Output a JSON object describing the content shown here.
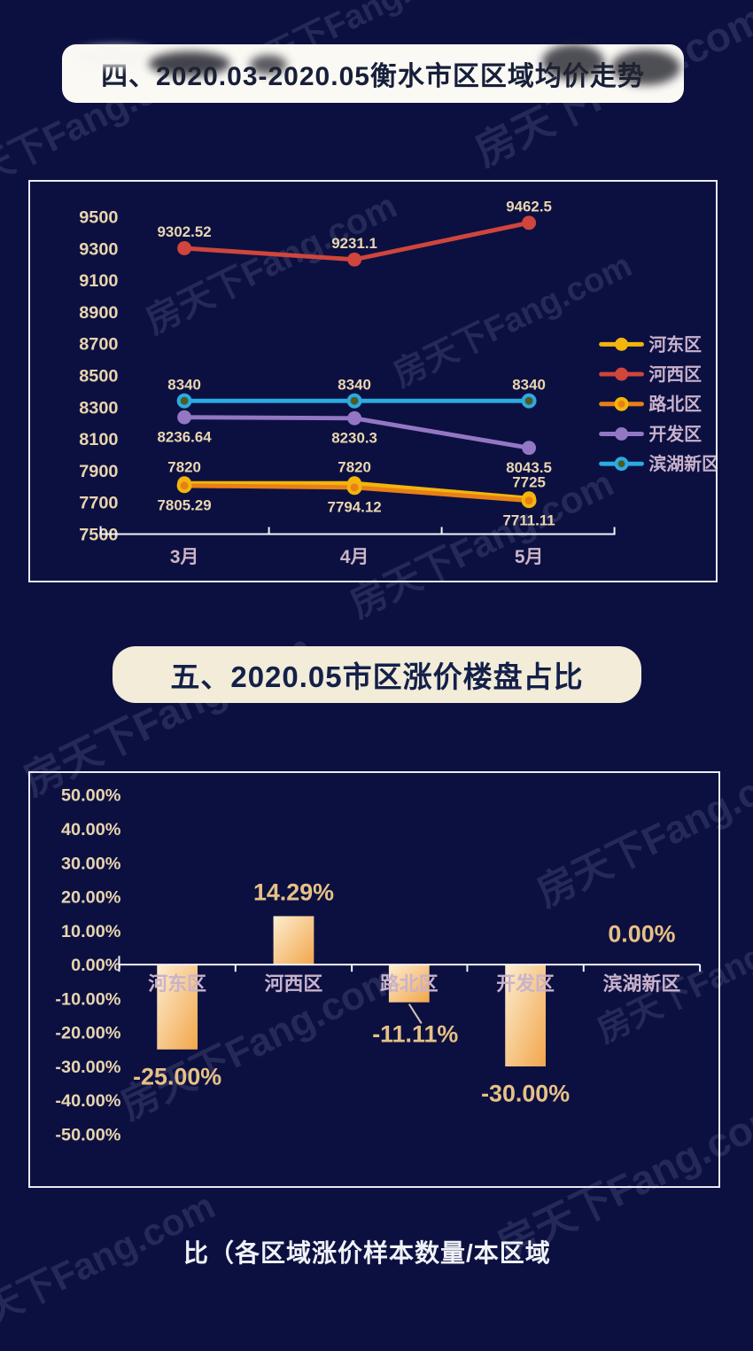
{
  "page": {
    "background": "#0c1041",
    "watermark": "房天下Fang.com",
    "footer": "比（各区域涨价样本数量/本区域"
  },
  "sections": [
    {
      "title": "四、2020.03-2020.05衡水市区区域均价走势"
    },
    {
      "title": "五、2020.05市区涨价楼盘占比"
    }
  ],
  "chart_data": [
    {
      "type": "line",
      "title": "2020.03-2020.05衡水市区区域均价走势",
      "categories": [
        "3月",
        "4月",
        "5月"
      ],
      "ylim": [
        7500,
        9500
      ],
      "ytick_step": 200,
      "grid": false,
      "legend_position": "right",
      "axis_color": "#f2f3f8",
      "series": [
        {
          "name": "河东区",
          "color": "#f2b50d",
          "marker_fill": "#f2b50d",
          "values": [
            7820,
            7820,
            7725
          ],
          "label_side": "above"
        },
        {
          "name": "河西区",
          "color": "#d0453c",
          "marker_fill": "#d0453c",
          "values": [
            9302.52,
            9231.1,
            9462.5
          ],
          "label_side": "above"
        },
        {
          "name": "路北区",
          "color": "#e87f17",
          "marker_fill": "#e87f17",
          "marker_ring": "#f2b50d",
          "values": [
            7805.29,
            7794.12,
            7711.11
          ],
          "label_side": "below"
        },
        {
          "name": "开发区",
          "color": "#9377c4",
          "marker_fill": "#9377c4",
          "values": [
            8236.64,
            8230.3,
            8043.5
          ],
          "label_side": "below"
        },
        {
          "name": "滨湖新区",
          "color": "#2babe2",
          "marker_fill": "#4f5c20",
          "marker_ring": "#2babe2",
          "values": [
            8340,
            8340,
            8340
          ],
          "label_side": "above"
        }
      ]
    },
    {
      "type": "bar",
      "title": "2020.05市区涨价楼盘占比",
      "categories": [
        "河东区",
        "河西区",
        "路北区",
        "开发区",
        "滨湖新区"
      ],
      "values": [
        -25.0,
        14.29,
        -11.11,
        -30.0,
        0.0
      ],
      "labels": [
        "-25.00%",
        "14.29%",
        "-11.11%",
        "-30.00%",
        "0.00%"
      ],
      "ylim": [
        -50,
        50
      ],
      "ytick_step": 10,
      "grid": false,
      "axis_color": "#f2f3f8",
      "bar_gradient": [
        "#fcedd0",
        "#f2a64b"
      ]
    }
  ]
}
